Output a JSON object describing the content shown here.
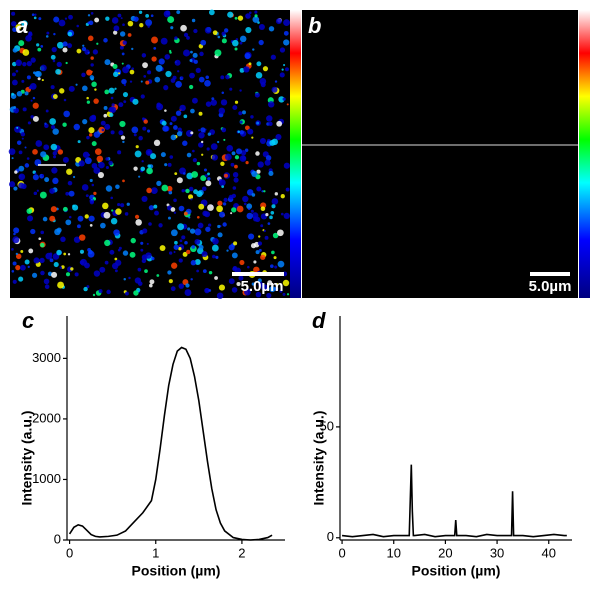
{
  "images": [
    {
      "label": "a",
      "scale_bar": "5.0µm"
    },
    {
      "label": "b",
      "scale_bar": "5.0µm"
    }
  ],
  "chart_data": [
    {
      "type": "line",
      "panel_label": "c",
      "x_label": "Position (µm)",
      "y_label": "Intensity (a.u.)",
      "color": "#000000",
      "x": [
        0,
        0.05,
        0.1,
        0.15,
        0.2,
        0.25,
        0.3,
        0.35,
        0.45,
        0.55,
        0.65,
        0.75,
        0.85,
        0.95,
        1.0,
        1.05,
        1.1,
        1.15,
        1.2,
        1.25,
        1.3,
        1.35,
        1.4,
        1.45,
        1.5,
        1.55,
        1.6,
        1.65,
        1.7,
        1.75,
        1.8,
        1.9,
        2.0,
        2.1,
        2.2,
        2.3,
        2.35
      ],
      "values": [
        100,
        210,
        250,
        230,
        160,
        90,
        60,
        50,
        60,
        80,
        150,
        300,
        450,
        650,
        1000,
        1500,
        2050,
        2550,
        2900,
        3120,
        3180,
        3150,
        3000,
        2700,
        2300,
        1800,
        1300,
        850,
        500,
        280,
        150,
        40,
        10,
        0,
        10,
        40,
        80
      ],
      "xlim": [
        -0.03,
        2.5
      ],
      "ylim": [
        0,
        3700
      ],
      "xticks": [
        0,
        1,
        2
      ],
      "yticks": [
        0,
        1000,
        2000,
        3000
      ]
    },
    {
      "type": "line",
      "panel_label": "d",
      "x_label": "Position (µm)",
      "y_label": "Intensity (a.u.)",
      "color": "#000000",
      "x": [
        0,
        2,
        4,
        6,
        8,
        10,
        12,
        13,
        13.4,
        13.6,
        13.8,
        14,
        16,
        18,
        20,
        21.8,
        22,
        22.2,
        24,
        26,
        28,
        30,
        32,
        32.8,
        33,
        33.2,
        35,
        37,
        39,
        41,
        43,
        43.5
      ],
      "values": [
        1,
        0.5,
        1,
        1.5,
        0.5,
        1,
        1,
        1,
        33,
        12,
        1,
        1,
        1.5,
        0.5,
        1,
        1,
        8,
        1,
        1,
        0.5,
        1.5,
        1,
        1,
        1,
        21,
        1,
        1,
        0.5,
        1,
        1.5,
        1,
        1
      ],
      "xlim": [
        -0.4,
        44.5
      ],
      "ylim": [
        -1,
        100
      ],
      "xticks": [
        0,
        10,
        20,
        30,
        40
      ],
      "yticks": [
        0,
        50
      ]
    }
  ]
}
